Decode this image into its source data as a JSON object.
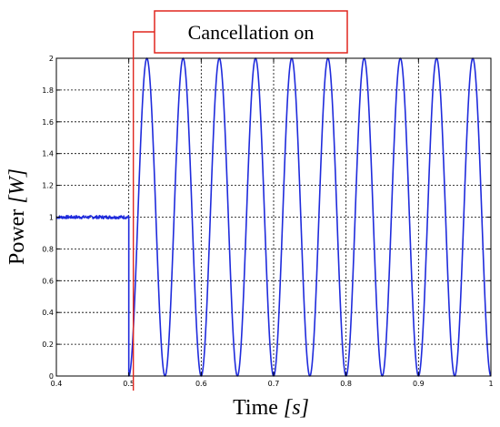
{
  "chart_data": {
    "type": "line",
    "title": "",
    "xlabel_main": "Time ",
    "xlabel_unit": "[s]",
    "ylabel_main": "Power ",
    "ylabel_unit": "[W]",
    "xlim": [
      0.4,
      1.0
    ],
    "ylim": [
      0,
      2
    ],
    "x_ticks": [
      "0.4",
      "0.5",
      "0.6",
      "0.7",
      "0.8",
      "0.9",
      "1"
    ],
    "y_ticks": [
      "0",
      "0.2",
      "0.4",
      "0.6",
      "0.8",
      "1",
      "1.2",
      "1.4",
      "1.6",
      "1.8",
      "2"
    ],
    "grid": true,
    "grid_style": "dashed",
    "series": [
      {
        "color": "#1f2bdc",
        "segments": [
          {
            "x_range": [
              0.4,
              0.5
            ],
            "shape": "noisy constant",
            "y": 1.0,
            "noise": 0.01
          },
          {
            "x_range": [
              0.5,
              1.0
            ],
            "shape": "sine",
            "formula": "1 - cos(2*pi*20*(t-0.5))",
            "frequency_hz": 20,
            "min": 0,
            "max": 2
          }
        ]
      }
    ],
    "annotation": {
      "text": "Cancellation on",
      "x": 0.5,
      "color": "#e0271f"
    }
  }
}
